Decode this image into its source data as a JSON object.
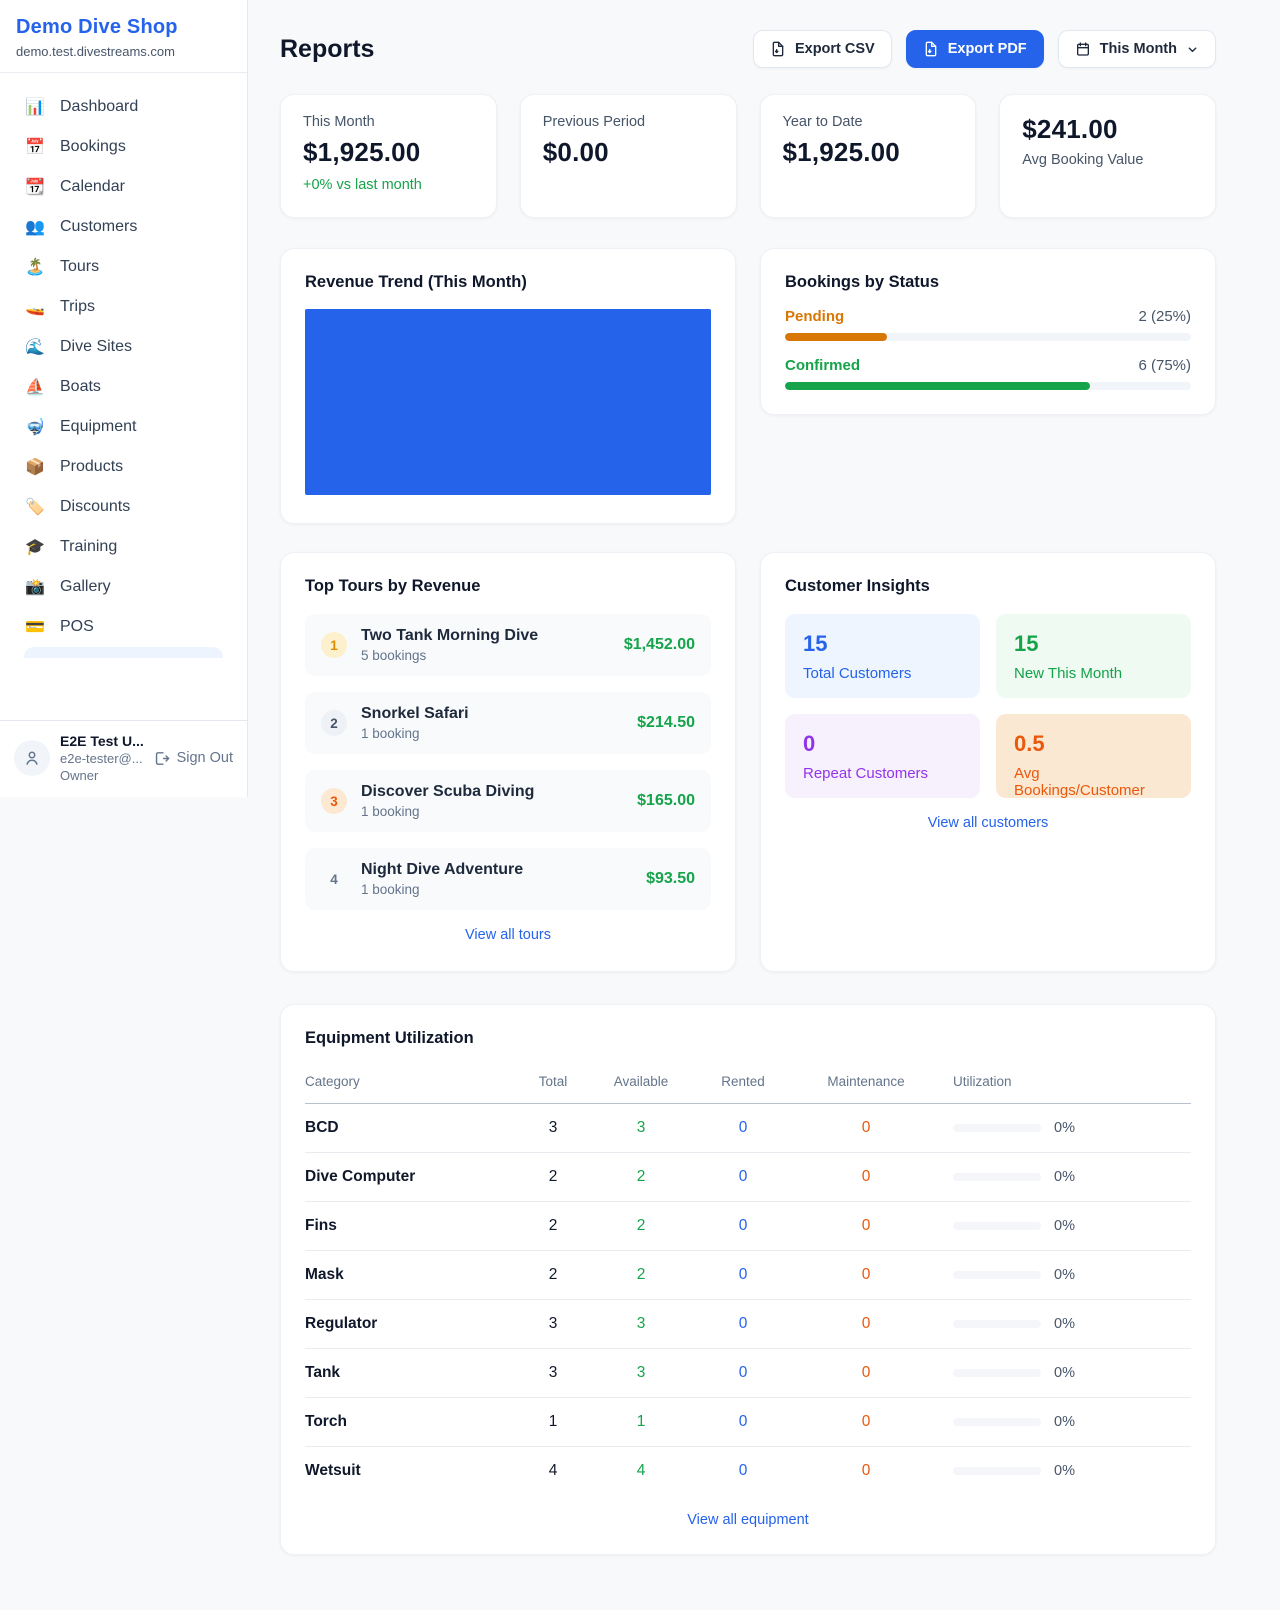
{
  "sidebar": {
    "brand": {
      "name": "Demo Dive Shop",
      "domain": "demo.test.divestreams.com"
    },
    "nav": [
      {
        "label": "Dashboard",
        "icon": "bar-chart-icon",
        "glyph": "📊"
      },
      {
        "label": "Bookings",
        "icon": "calendar-date-icon",
        "glyph": "📅"
      },
      {
        "label": "Calendar",
        "icon": "tear-calendar-icon",
        "glyph": "📆"
      },
      {
        "label": "Customers",
        "icon": "people-icon",
        "glyph": "👥"
      },
      {
        "label": "Tours",
        "icon": "island-icon",
        "glyph": "🏝️"
      },
      {
        "label": "Trips",
        "icon": "speedboat-icon",
        "glyph": "🚤"
      },
      {
        "label": "Dive Sites",
        "icon": "wave-icon",
        "glyph": "🌊"
      },
      {
        "label": "Boats",
        "icon": "sailboat-icon",
        "glyph": "⛵"
      },
      {
        "label": "Equipment",
        "icon": "dive-mask-icon",
        "glyph": "🤿"
      },
      {
        "label": "Products",
        "icon": "package-icon",
        "glyph": "📦"
      },
      {
        "label": "Discounts",
        "icon": "tag-icon",
        "glyph": "🏷️"
      },
      {
        "label": "Training",
        "icon": "graduation-cap-icon",
        "glyph": "🎓"
      },
      {
        "label": "Gallery",
        "icon": "camera-icon",
        "glyph": "📸"
      },
      {
        "label": "POS",
        "icon": "credit-card-icon",
        "glyph": "💳"
      }
    ],
    "user": {
      "name": "E2E Test U...",
      "email": "e2e-tester@...",
      "role": "Owner",
      "sign_out": "Sign Out"
    }
  },
  "header": {
    "title": "Reports",
    "export_csv": "Export CSV",
    "export_pdf": "Export PDF",
    "period": "This Month"
  },
  "stats": {
    "this_month": {
      "label": "This Month",
      "value": "$1,925.00",
      "delta": "+0% vs last month"
    },
    "previous": {
      "label": "Previous Period",
      "value": "$0.00"
    },
    "ytd": {
      "label": "Year to Date",
      "value": "$1,925.00"
    },
    "avg": {
      "value": "$241.00",
      "label": "Avg Booking Value"
    }
  },
  "revenue_trend": {
    "title": "Revenue Trend (This Month)",
    "fill_color": "#2563eb"
  },
  "bookings_status": {
    "title": "Bookings by Status",
    "rows": [
      {
        "label": "Pending",
        "count_text": "2 (25%)",
        "pct": 25,
        "color": "#d97706"
      },
      {
        "label": "Confirmed",
        "count_text": "6 (75%)",
        "pct": 75,
        "color": "#16a34a"
      }
    ]
  },
  "chart_data": [
    {
      "type": "area",
      "title": "Revenue Trend (This Month)",
      "color": "#2563eb",
      "note": "solid filled area occupying full plot, no axes, ticks or labels visible"
    },
    {
      "type": "bar",
      "title": "Bookings by Status",
      "categories": [
        "Pending",
        "Confirmed"
      ],
      "values": [
        2,
        6
      ],
      "percents": [
        25,
        75
      ],
      "colors": [
        "#d97706",
        "#16a34a"
      ]
    }
  ],
  "top_tours": {
    "title": "Top Tours by Revenue",
    "link": "View all tours",
    "items": [
      {
        "rank": "1",
        "name": "Two Tank Morning Dive",
        "sub": "5 bookings",
        "amount": "$1,452.00"
      },
      {
        "rank": "2",
        "name": "Snorkel Safari",
        "sub": "1 booking",
        "amount": "$214.50"
      },
      {
        "rank": "3",
        "name": "Discover Scuba Diving",
        "sub": "1 booking",
        "amount": "$165.00"
      },
      {
        "rank": "4",
        "name": "Night Dive Adventure",
        "sub": "1 booking",
        "amount": "$93.50"
      }
    ]
  },
  "customer_insights": {
    "title": "Customer Insights",
    "link": "View all customers",
    "tiles": [
      {
        "value": "15",
        "label": "Total Customers"
      },
      {
        "value": "15",
        "label": "New This Month"
      },
      {
        "value": "0",
        "label": "Repeat Customers"
      },
      {
        "value": "0.5",
        "label": "Avg Bookings/Customer"
      }
    ]
  },
  "equipment": {
    "title": "Equipment Utilization",
    "link": "View all equipment",
    "headers": [
      "Category",
      "Total",
      "Available",
      "Rented",
      "Maintenance",
      "Utilization"
    ],
    "rows": [
      {
        "category": "BCD",
        "total": "3",
        "available": "3",
        "rented": "0",
        "maintenance": "0",
        "utilization": "0%"
      },
      {
        "category": "Dive Computer",
        "total": "2",
        "available": "2",
        "rented": "0",
        "maintenance": "0",
        "utilization": "0%"
      },
      {
        "category": "Fins",
        "total": "2",
        "available": "2",
        "rented": "0",
        "maintenance": "0",
        "utilization": "0%"
      },
      {
        "category": "Mask",
        "total": "2",
        "available": "2",
        "rented": "0",
        "maintenance": "0",
        "utilization": "0%"
      },
      {
        "category": "Regulator",
        "total": "3",
        "available": "3",
        "rented": "0",
        "maintenance": "0",
        "utilization": "0%"
      },
      {
        "category": "Tank",
        "total": "3",
        "available": "3",
        "rented": "0",
        "maintenance": "0",
        "utilization": "0%"
      },
      {
        "category": "Torch",
        "total": "1",
        "available": "1",
        "rented": "0",
        "maintenance": "0",
        "utilization": "0%"
      },
      {
        "category": "Wetsuit",
        "total": "4",
        "available": "4",
        "rented": "0",
        "maintenance": "0",
        "utilization": "0%"
      }
    ]
  },
  "colors": {
    "accent": "#2563eb",
    "green": "#16a34a",
    "orange": "#d97706",
    "maintenance": "#ea580c",
    "purple": "#9333ea"
  }
}
